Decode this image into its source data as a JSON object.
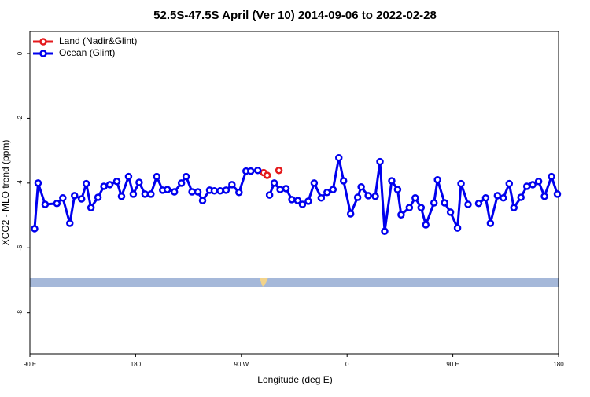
{
  "chart_data": {
    "type": "line",
    "title": "52.5S-47.5S April (Ver 10)   2014-09-06 to 2022-02-28",
    "xlabel": "Longitude (deg E)",
    "ylabel": "XCO2 - MLO trend (ppm)",
    "xlim": [
      90,
      540
    ],
    "xticks": [
      {
        "value": 90,
        "label": "90 E"
      },
      180,
      {
        "value": 270,
        "label": "90 W"
      },
      {
        "value": 360,
        "label": "0"
      },
      {
        "value": 450,
        "label": "90 E"
      },
      {
        "value": 540,
        "label": "180"
      }
    ],
    "ylim": [
      -9.27,
      0.68
    ],
    "yticks": [
      0,
      -2,
      -4,
      -6,
      -8
    ],
    "legend": "top-left",
    "series": [
      {
        "name": "Land (Nadir&Glint)",
        "color": "#e41a1c",
        "x": [
          289,
          292,
          302
        ],
        "values": [
          -3.68,
          -3.76,
          null
        ]
      },
      {
        "name": "Ocean (Glint)",
        "color": "#0000ee",
        "x": [
          94,
          97,
          103,
          113,
          118,
          124,
          128,
          134,
          138,
          142,
          148,
          153,
          158,
          164,
          168,
          174,
          178,
          183,
          188,
          193,
          198,
          203,
          207,
          213,
          219,
          223,
          228,
          233,
          237,
          243,
          247,
          252,
          257,
          262,
          268,
          274,
          278,
          284,
          288,
          294,
          298,
          303,
          308,
          313,
          318,
          322,
          327,
          332,
          338,
          343,
          348,
          353,
          357,
          363,
          369,
          372,
          378,
          384,
          388,
          392,
          398,
          403,
          406,
          413,
          418,
          423,
          427,
          434,
          437,
          443,
          448,
          454,
          457,
          463,
          468,
          472,
          478,
          482,
          488,
          493,
          498,
          502,
          508,
          513,
          518,
          523,
          528,
          534,
          539
        ],
        "values": [
          -5.41,
          -4.0,
          -4.66,
          -4.63,
          -4.46,
          -5.24,
          -4.39,
          -4.49,
          -4.02,
          -4.76,
          -4.44,
          -4.1,
          -4.05,
          -3.95,
          -4.41,
          -3.8,
          -4.34,
          -3.98,
          -4.34,
          -4.34,
          -3.8,
          -4.22,
          -4.2,
          -4.27,
          -4.0,
          -3.8,
          -4.27,
          -4.27,
          -4.54,
          -4.22,
          -4.24,
          -4.24,
          -4.22,
          -4.05,
          -4.29,
          -3.63,
          -3.63,
          -3.61,
          null,
          -4.37,
          -4.0,
          -4.2,
          -4.17,
          -4.51,
          -4.54,
          -4.66,
          -4.56,
          -4.0,
          -4.46,
          -4.29,
          -4.2,
          -3.22,
          -3.93,
          -4.95,
          -4.44,
          -4.12,
          -4.39,
          -4.41,
          -3.34,
          -5.49,
          -3.93,
          -4.2,
          -4.98,
          -4.76,
          -4.46,
          -4.76,
          -5.29,
          -4.61,
          -3.9,
          -4.61,
          -4.9,
          -5.39,
          -4.02,
          -4.66,
          null,
          -4.63,
          -4.46,
          -5.24,
          -4.39,
          -4.46,
          -4.02,
          -4.76,
          -4.44,
          -4.1,
          -4.05,
          -3.95,
          -4.41,
          -3.8,
          -4.34
        ]
      }
    ],
    "extra_points": {
      "series": 0,
      "x": [
        302
      ],
      "values": [
        -3.61
      ]
    }
  }
}
